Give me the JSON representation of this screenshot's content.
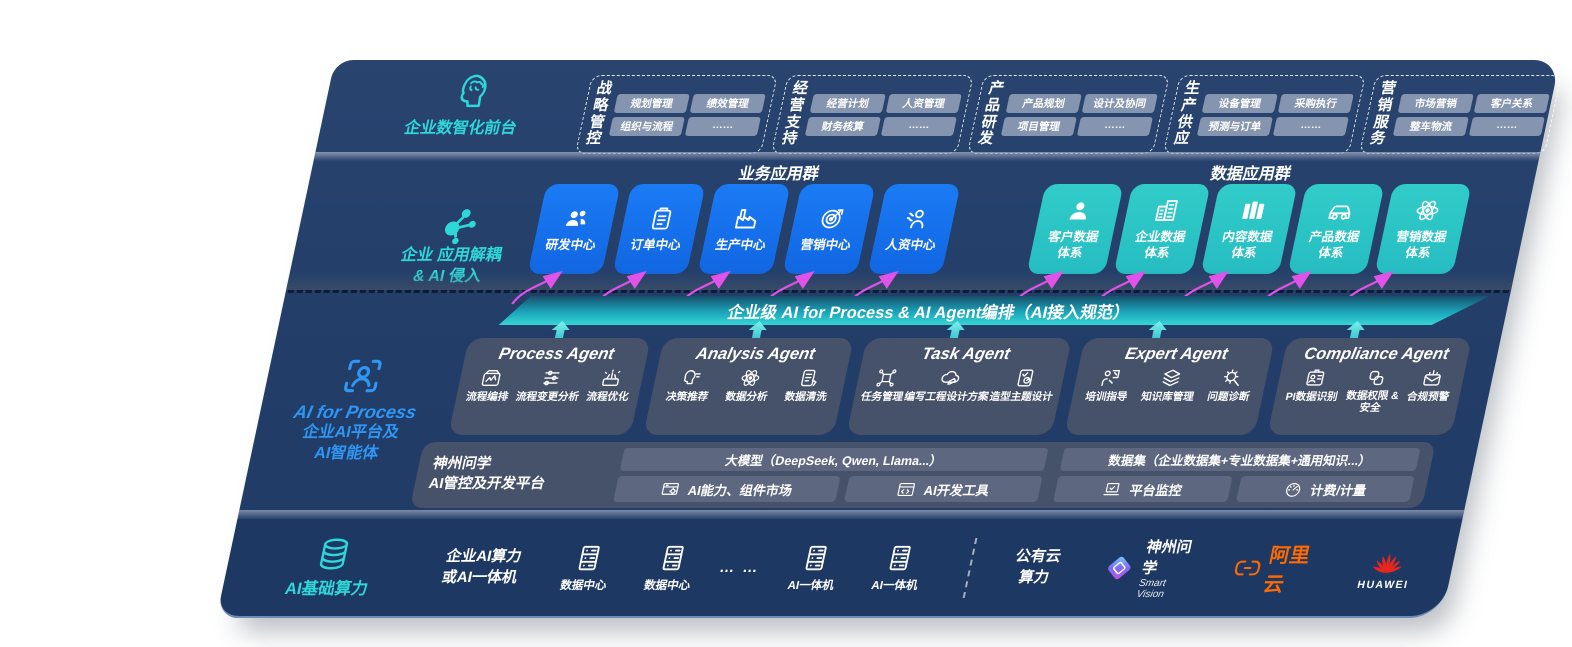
{
  "front": {
    "label": "企业数智化前台",
    "groups": [
      {
        "name": "战略\n管控",
        "chips": [
          "规划管理",
          "绩效管理",
          "组织与流程",
          "……"
        ]
      },
      {
        "name": "经营\n支持",
        "chips": [
          "经营计划",
          "人资管理",
          "财务核算",
          "……"
        ]
      },
      {
        "name": "产品\n研发",
        "chips": [
          "产品规划",
          "设计及协同",
          "项目管理",
          "……"
        ]
      },
      {
        "name": "生产\n供应",
        "chips": [
          "设备管理",
          "采购执行",
          "预测与订单",
          "……"
        ]
      },
      {
        "name": "营销\n服务",
        "chips": [
          "市场营销",
          "客户关系",
          "整车物流",
          "……"
        ]
      }
    ]
  },
  "apps": {
    "label_line1": "企业 应用解耦",
    "label_line2": "& AI 侵入",
    "business_title": "业务应用群",
    "business": [
      {
        "label": "研发中心",
        "icon": "people-icon"
      },
      {
        "label": "订单中心",
        "icon": "clipboard-icon"
      },
      {
        "label": "生产中心",
        "icon": "factory-icon"
      },
      {
        "label": "营销中心",
        "icon": "target-icon"
      },
      {
        "label": "人资中心",
        "icon": "person-wave-icon"
      }
    ],
    "data_title": "数据应用群",
    "data": [
      {
        "line1": "客户数据",
        "line2": "体系",
        "icon": "person-icon"
      },
      {
        "line1": "企业数据",
        "line2": "体系",
        "icon": "building-icon"
      },
      {
        "line1": "内容数据",
        "line2": "体系",
        "icon": "documents-icon"
      },
      {
        "line1": "产品数据",
        "line2": "体系",
        "icon": "car-icon"
      },
      {
        "line1": "营销数据",
        "line2": "体系",
        "icon": "atom-icon"
      }
    ]
  },
  "band": {
    "title": "企业级 AI for Process & AI Agent编排（AI接入规范）"
  },
  "ai": {
    "label_line1": "AI for Process",
    "label_line2": "企业AI平台及",
    "label_line3": "AI智能体",
    "agents": [
      {
        "title": "Process Agent",
        "items": [
          {
            "label": "流程编排",
            "icon": "box-wave-icon"
          },
          {
            "label": "流程变更分析",
            "icon": "sliders-icon"
          },
          {
            "label": "流程优化",
            "icon": "spark-box-icon"
          }
        ]
      },
      {
        "title": "Analysis Agent",
        "items": [
          {
            "label": "决策推荐",
            "icon": "head-chat-icon"
          },
          {
            "label": "数据分析",
            "icon": "atom-icon"
          },
          {
            "label": "数据清洗",
            "icon": "document-icon"
          }
        ]
      },
      {
        "title": "Task Agent",
        "items": [
          {
            "label": "任务管理",
            "icon": "nodes-icon"
          },
          {
            "label": "编写工程设计方案",
            "icon": "cloud-pen-icon"
          },
          {
            "label": "造型主题设计",
            "icon": "tablet-check-icon"
          }
        ]
      },
      {
        "title": "Expert Agent",
        "items": [
          {
            "label": "培训指导",
            "icon": "mentor-icon"
          },
          {
            "label": "知识库管理",
            "icon": "layers-icon"
          },
          {
            "label": "问题诊断",
            "icon": "gear-search-icon"
          }
        ]
      },
      {
        "title": "Compliance Agent",
        "items": [
          {
            "label": "PI数据识别",
            "icon": "id-card-icon"
          },
          {
            "label": "数据权限 &",
            "label2": "安全",
            "icon": "rings-icon"
          },
          {
            "label": "合规预警",
            "icon": "mail-alert-icon"
          }
        ]
      }
    ]
  },
  "platform": {
    "label_line1": "神州问学",
    "label_line2": "AI管控及开发平台",
    "model_bar": "大模型（DeepSeek, Qwen, Llama...）",
    "left_cells": [
      {
        "label": "AI能力、组件市场",
        "icon": "monitor-gear-icon"
      },
      {
        "label": "AI开发工具",
        "icon": "window-code-icon"
      }
    ],
    "dataset_bar": "数据集（企业数据集+专业数据集+通用知识...）",
    "right_cells": [
      {
        "label": "平台监控",
        "icon": "laptop-icon"
      },
      {
        "label": "计费/计量",
        "icon": "gauge-icon"
      }
    ]
  },
  "infra": {
    "label": "AI基础算力",
    "compute_line1": "企业AI算力",
    "compute_line2": "或AI一体机",
    "nodes": [
      {
        "label": "数据中心",
        "icon": "server-icon"
      },
      {
        "label": "数据中心",
        "icon": "server-icon"
      },
      {
        "label": "AI一体机",
        "icon": "server-icon"
      },
      {
        "label": "AI一体机",
        "icon": "server-icon"
      }
    ],
    "dots": "… …",
    "cloud_line1": "公有云",
    "cloud_line2": "算力",
    "vendors": {
      "smartvision_name": "神州问学",
      "smartvision_sub": "Smart Vision",
      "alicloud": "阿里云",
      "huawei": "HUAWEI"
    }
  },
  "colors": {
    "navy": "#223E69",
    "blue_box": "#1673F0",
    "teal_box": "#2BC5C7",
    "teal_text": "#2FD8D8",
    "blue_text": "#2F96F3",
    "magenta_arrow": "#E052E8",
    "cyan_arrow": "#2FD6DE",
    "band_teal": "#2FC9CC",
    "ali_orange": "#FF6A00",
    "huawei_red": "#E8261D"
  }
}
